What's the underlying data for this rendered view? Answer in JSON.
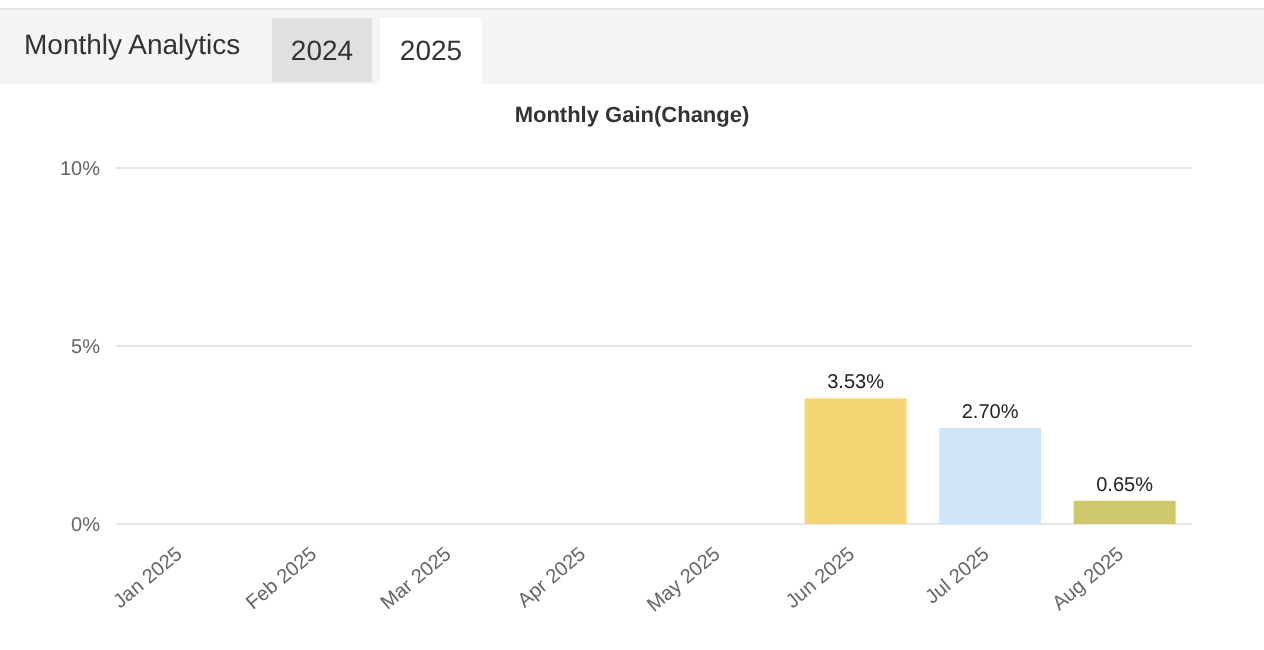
{
  "chart_data": {
    "type": "bar",
    "title": "Monthly Gain(Change)",
    "annotations": [
      "Monthly Analytics",
      "2024",
      "2025"
    ],
    "categories": [
      "Jan 2025",
      "Feb 2025",
      "Mar 2025",
      "Apr 2025",
      "May 2025",
      "Jun 2025",
      "Jul 2025",
      "Aug 2025"
    ],
    "values": [
      null,
      null,
      null,
      null,
      null,
      3.53,
      2.7,
      0.65
    ],
    "colors": [
      "#f4d675",
      "#f4d675",
      "#f4d675",
      "#f4d675",
      "#f4d675",
      "#f4d675",
      "#cfe5f8",
      "#cfc86a"
    ],
    "value_labels": [
      null,
      null,
      null,
      null,
      null,
      "3.53%",
      "2.70%",
      "0.65%"
    ],
    "ylim": [
      0,
      10
    ],
    "yticks": [
      {
        "value": 0,
        "label": "0%"
      },
      {
        "value": 5,
        "label": "5%"
      },
      {
        "value": 10,
        "label": "10%"
      }
    ],
    "grid": "y"
  }
}
